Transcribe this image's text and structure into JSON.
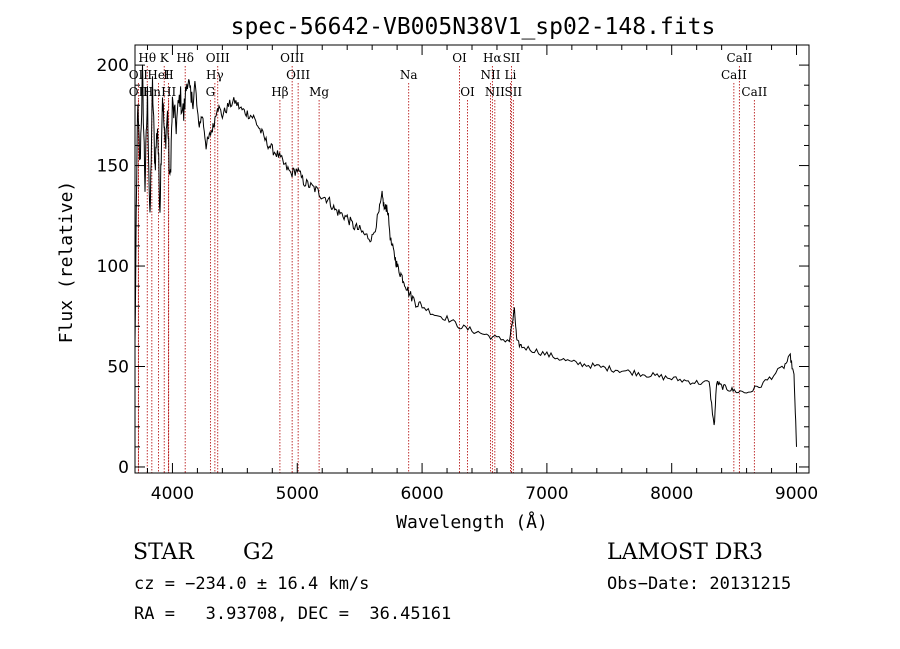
{
  "chart_data": {
    "type": "line",
    "title": "spec-56642-VB005N38V1_sp02-148.fits",
    "xlabel": "Wavelength (Å)",
    "ylabel": "Flux (relative)",
    "xlim": [
      3700,
      9100
    ],
    "ylim": [
      -3,
      210
    ],
    "x_ticks": [
      4000,
      5000,
      6000,
      7000,
      8000,
      9000
    ],
    "x_tick_labels": [
      "4000",
      "5000",
      "6000",
      "7000",
      "8000",
      "9000"
    ],
    "y_ticks": [
      0,
      50,
      100,
      150,
      200
    ],
    "y_tick_labels": [
      "0",
      "50",
      "100",
      "150",
      "200"
    ],
    "series": [
      {
        "name": "flux",
        "color": "#000000",
        "x": [
          3700,
          3720,
          3740,
          3760,
          3780,
          3800,
          3820,
          3840,
          3860,
          3880,
          3900,
          3920,
          3940,
          3960,
          3980,
          4000,
          4030,
          4060,
          4090,
          4120,
          4150,
          4180,
          4210,
          4240,
          4270,
          4300,
          4330,
          4360,
          4400,
          4450,
          4500,
          4550,
          4600,
          4650,
          4700,
          4750,
          4800,
          4850,
          4900,
          4950,
          5000,
          5050,
          5100,
          5150,
          5200,
          5250,
          5300,
          5350,
          5400,
          5450,
          5500,
          5550,
          5600,
          5650,
          5680,
          5700,
          5720,
          5750,
          5780,
          5800,
          5830,
          5860,
          5900,
          5950,
          6000,
          6100,
          6200,
          6300,
          6400,
          6500,
          6600,
          6700,
          6740,
          6760,
          6800,
          6900,
          7000,
          7100,
          7200,
          7300,
          7400,
          7500,
          7600,
          7700,
          7800,
          7900,
          8000,
          8100,
          8200,
          8300,
          8340,
          8360,
          8400,
          8450,
          8500,
          8600,
          8700,
          8800,
          8900,
          8950,
          8980,
          9000
        ],
        "y": [
          60,
          180,
          150,
          195,
          140,
          185,
          120,
          190,
          150,
          170,
          130,
          185,
          160,
          175,
          140,
          180,
          170,
          185,
          175,
          195,
          180,
          190,
          170,
          175,
          160,
          165,
          170,
          180,
          175,
          180,
          182,
          178,
          176,
          174,
          168,
          162,
          158,
          155,
          150,
          146,
          148,
          142,
          140,
          138,
          135,
          133,
          128,
          126,
          124,
          120,
          118,
          115,
          114,
          125,
          135,
          128,
          130,
          112,
          105,
          100,
          96,
          92,
          86,
          82,
          80,
          76,
          74,
          70,
          68,
          66,
          64,
          63,
          78,
          62,
          60,
          58,
          56,
          54,
          52,
          51,
          50,
          49,
          48,
          47,
          46,
          45,
          44,
          43,
          42,
          42,
          20,
          42,
          40,
          39,
          38,
          37,
          40,
          45,
          50,
          55,
          45,
          10
        ]
      }
    ],
    "line_labels": [
      {
        "name": "Hθ",
        "x": 3798,
        "row": 1
      },
      {
        "name": "K",
        "x": 3934,
        "row": 1
      },
      {
        "name": "Hδ",
        "x": 4102,
        "row": 1
      },
      {
        "name": "OIII",
        "x": 4363,
        "row": 1
      },
      {
        "name": "OIII",
        "x": 4959,
        "row": 1
      },
      {
        "name": "OI",
        "x": 6300,
        "row": 1
      },
      {
        "name": "Hα",
        "x": 6563,
        "row": 1
      },
      {
        "name": "SII",
        "x": 6716,
        "row": 1
      },
      {
        "name": "CaII",
        "x": 8542,
        "row": 1
      },
      {
        "name": "OII",
        "x": 3727,
        "row": 2
      },
      {
        "name": "HeI",
        "x": 3889,
        "row": 2
      },
      {
        "name": "H",
        "x": 3968,
        "row": 2
      },
      {
        "name": "Hγ",
        "x": 4340,
        "row": 2
      },
      {
        "name": "OIII",
        "x": 5007,
        "row": 2
      },
      {
        "name": "Na",
        "x": 5893,
        "row": 2
      },
      {
        "name": "NII",
        "x": 6548,
        "row": 2
      },
      {
        "name": "Li",
        "x": 6708,
        "row": 2
      },
      {
        "name": "CaII",
        "x": 8498,
        "row": 2
      },
      {
        "name": "OII",
        "x": 3727,
        "row": 3
      },
      {
        "name": "Hn",
        "x": 3835,
        "row": 3
      },
      {
        "name": "HI",
        "x": 3970,
        "row": 3
      },
      {
        "name": "G",
        "x": 4304,
        "row": 3
      },
      {
        "name": "Hβ",
        "x": 4861,
        "row": 3
      },
      {
        "name": "Mg",
        "x": 5175,
        "row": 3
      },
      {
        "name": "OI",
        "x": 6364,
        "row": 3
      },
      {
        "name": "NII",
        "x": 6583,
        "row": 3
      },
      {
        "name": "SII",
        "x": 6731,
        "row": 3
      },
      {
        "name": "CaII",
        "x": 8662,
        "row": 3
      }
    ],
    "line_color": "#b00000"
  },
  "info": {
    "class_label": "STAR",
    "subclass": "G2",
    "survey": "LAMOST DR3",
    "cz": "cz = −234.0 ± 16.4 km/s",
    "obs_date": "Obs−Date: 20131215",
    "radec": "RA =   3.93708, DEC =  36.45161"
  }
}
